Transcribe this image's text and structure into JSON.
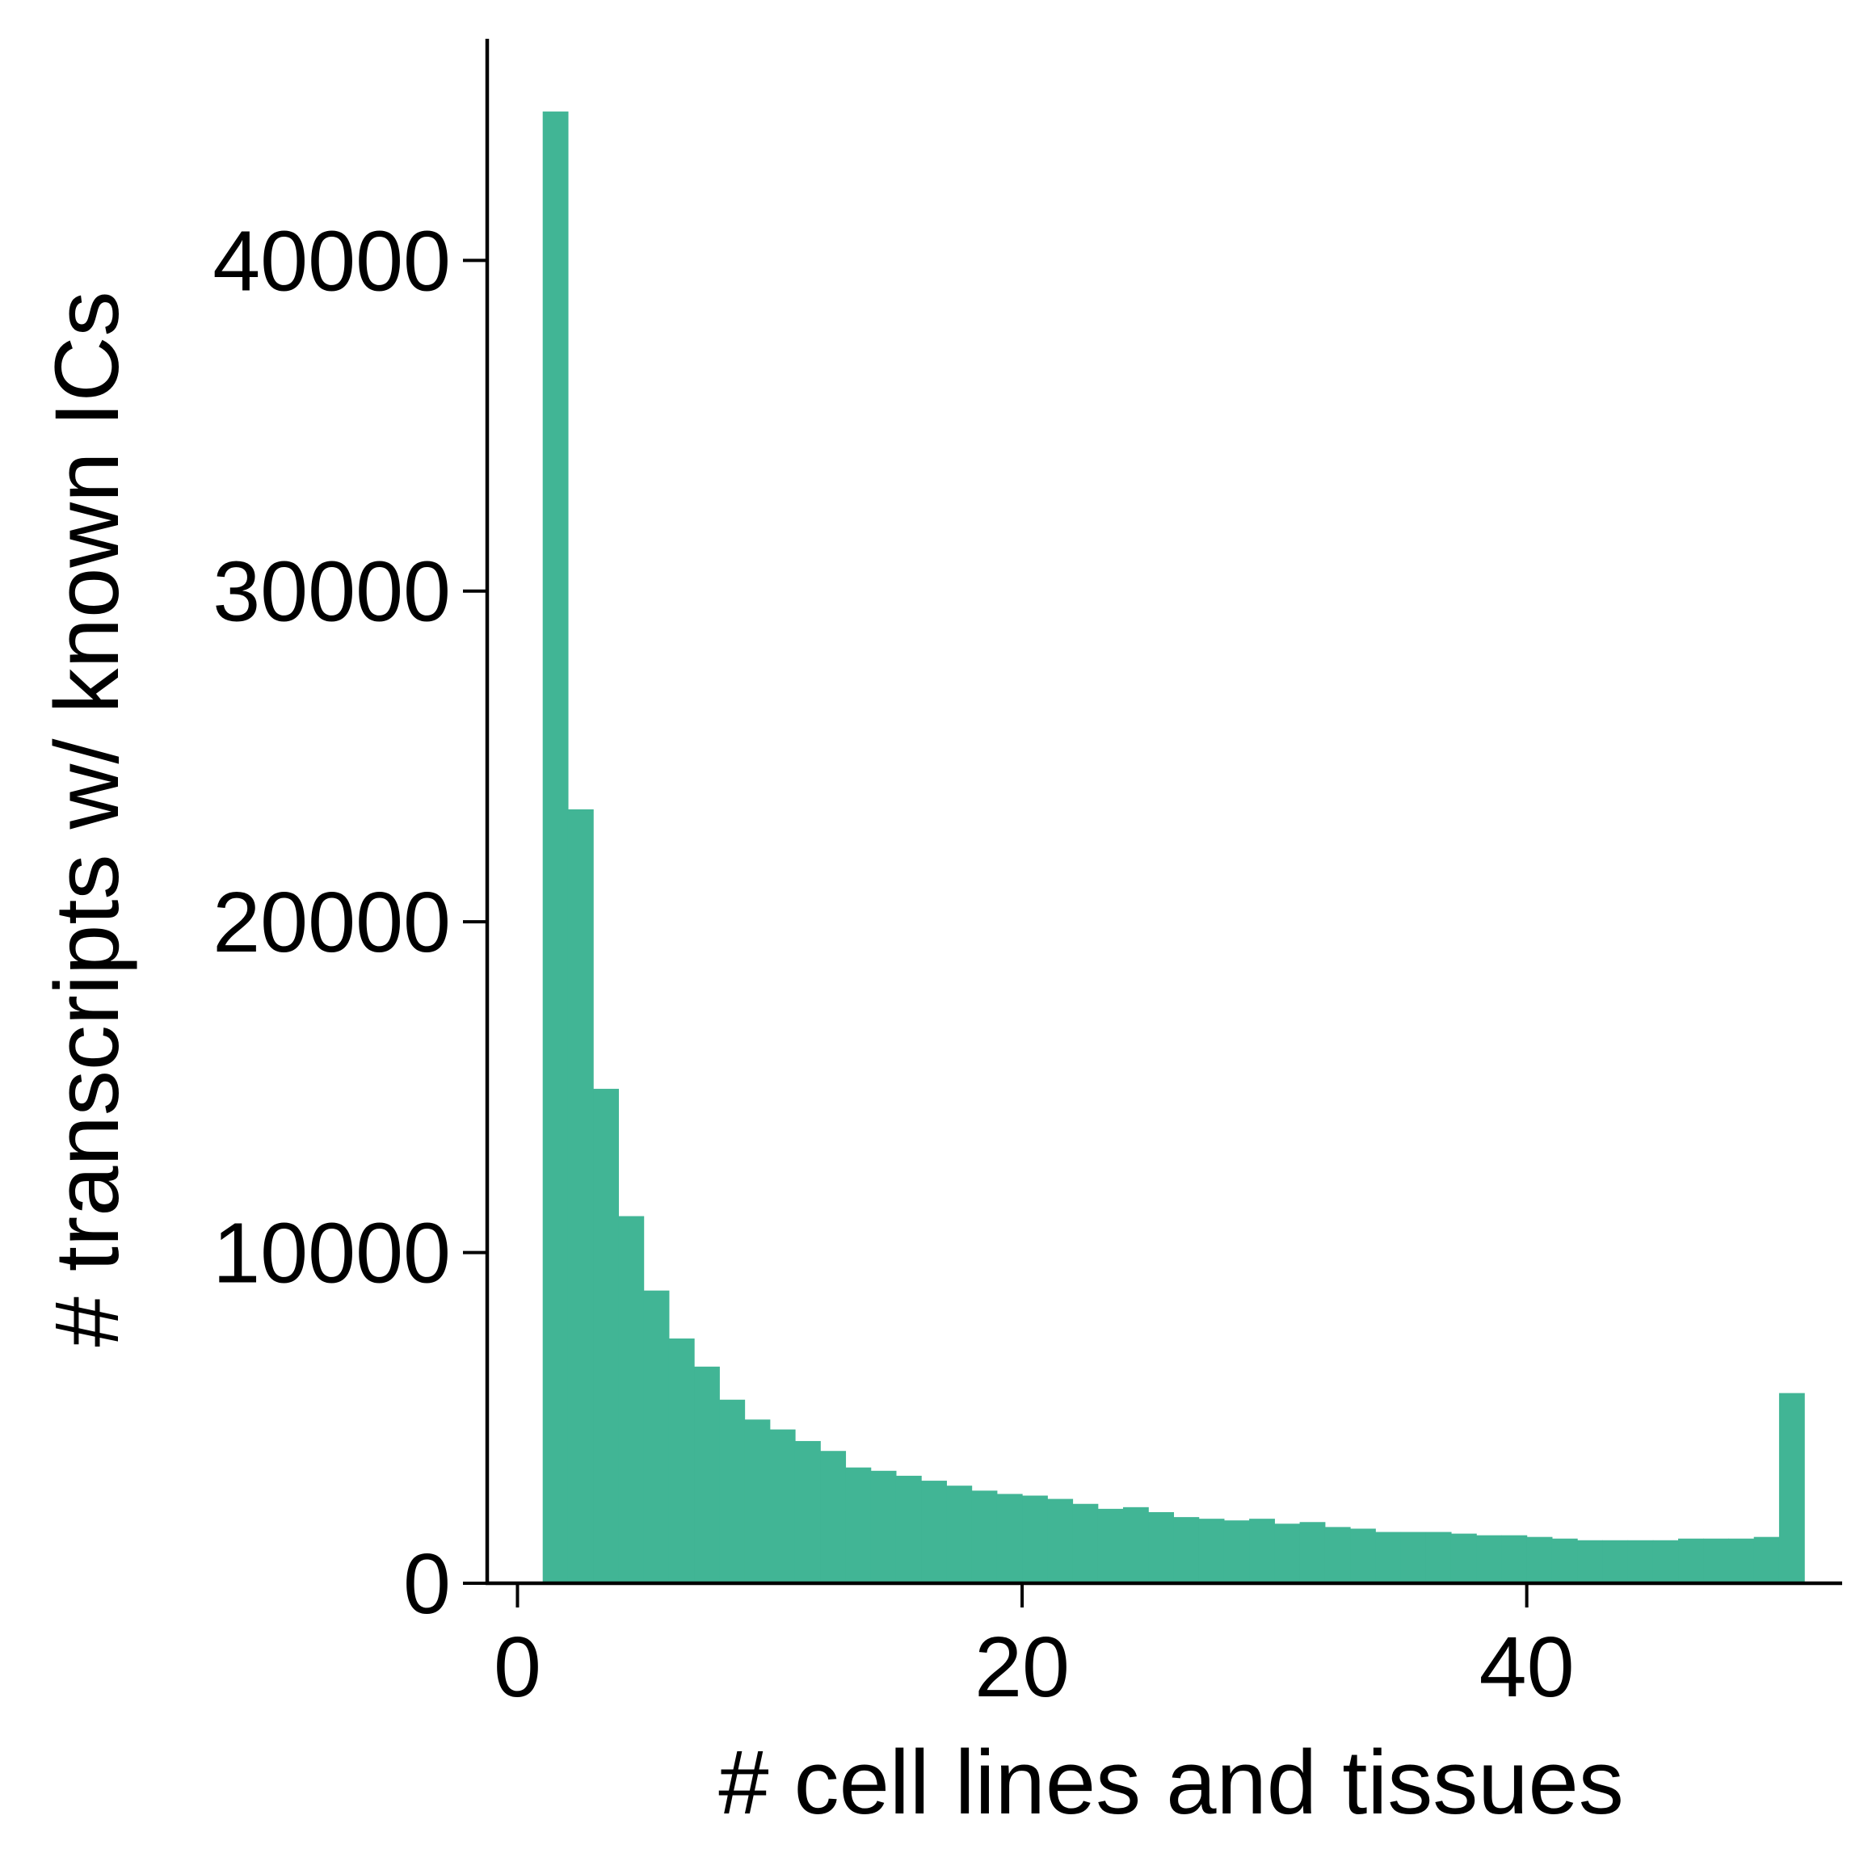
{
  "chart_data": {
    "type": "bar",
    "subtype": "histogram",
    "xlabel": "# cell lines and tissues",
    "ylabel": "# transcripts w/ known ICs",
    "xlim": [
      -1.2,
      52.5
    ],
    "ylim": [
      0,
      46700
    ],
    "xticks": [
      0,
      20,
      40
    ],
    "yticks": [
      0,
      10000,
      20000,
      30000,
      40000
    ],
    "xtick_labels": [
      "0",
      "20",
      "40"
    ],
    "ytick_labels": [
      "0",
      "10000",
      "20000",
      "30000",
      "40000"
    ],
    "bar_color": "#41b595",
    "spines": "left-bottom",
    "grid": false,
    "bin_width": 1,
    "bins_start": [
      1,
      2,
      3,
      4,
      5,
      6,
      7,
      8,
      9,
      10,
      11,
      12,
      13,
      14,
      15,
      16,
      17,
      18,
      19,
      20,
      21,
      22,
      23,
      24,
      25,
      26,
      27,
      28,
      29,
      30,
      31,
      32,
      33,
      34,
      35,
      36,
      37,
      38,
      39,
      40,
      41,
      42,
      43,
      44,
      45,
      46,
      47,
      48,
      49,
      50
    ],
    "values": [
      44500,
      23400,
      14950,
      11100,
      8850,
      7400,
      6550,
      5550,
      4950,
      4650,
      4300,
      4000,
      3500,
      3400,
      3250,
      3100,
      2950,
      2800,
      2700,
      2650,
      2550,
      2400,
      2250,
      2300,
      2150,
      2000,
      1950,
      1900,
      1950,
      1800,
      1850,
      1700,
      1650,
      1550,
      1550,
      1550,
      1500,
      1450,
      1450,
      1400,
      1350,
      1300,
      1300,
      1300,
      1300,
      1350,
      1350,
      1350,
      1400,
      5750
    ]
  }
}
